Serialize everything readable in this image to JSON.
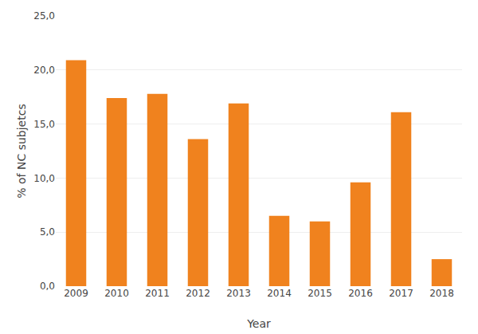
{
  "chart_data": {
    "type": "bar",
    "categories": [
      "2009",
      "2010",
      "2011",
      "2012",
      "2013",
      "2014",
      "2015",
      "2016",
      "2017",
      "2018"
    ],
    "values": [
      20.9,
      17.4,
      17.8,
      13.6,
      16.9,
      6.5,
      6.0,
      9.6,
      16.1,
      2.5
    ],
    "color": "#F0821E",
    "xlabel": "Year",
    "ylabel": "% of NC subjetcs",
    "ylim": [
      0,
      25
    ],
    "yticks": [
      {
        "value": 0,
        "label": "0,0"
      },
      {
        "value": 5,
        "label": "5,0"
      },
      {
        "value": 10,
        "label": "10,0"
      },
      {
        "value": 15,
        "label": "15,0"
      },
      {
        "value": 20,
        "label": "20,0"
      },
      {
        "value": 25,
        "label": "25,0"
      }
    ],
    "grid": true
  }
}
